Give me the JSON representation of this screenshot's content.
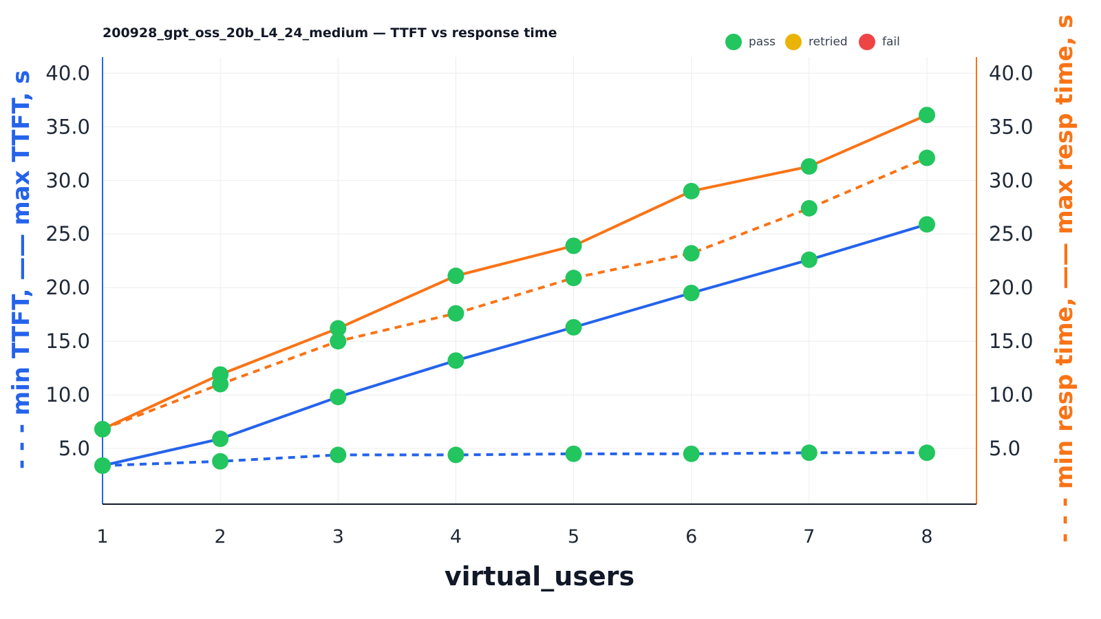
{
  "chart_data": {
    "type": "line",
    "title": "200928_gpt_oss_20b_L4_24_medium — TTFT vs response time",
    "xlabel": "virtual_users",
    "ylabel_left": "- - - min TTFT, —— max TTFT, s",
    "ylabel_right": "- - - min resp time, —— max resp time, s",
    "x": [
      1,
      2,
      3,
      4,
      5,
      6,
      7,
      8
    ],
    "ylim_left": [
      0,
      41.5
    ],
    "ylim_right": [
      0,
      41.5
    ],
    "yticks": [
      "5.0",
      "10.0",
      "15.0",
      "20.0",
      "25.0",
      "30.0",
      "35.0",
      "40.0"
    ],
    "grid": true,
    "legend_position": "top-right",
    "legend": [
      {
        "label": "pass",
        "color": "#22c55e"
      },
      {
        "label": "retried",
        "color": "#eab308"
      },
      {
        "label": "fail",
        "color": "#ef4444"
      }
    ],
    "series": [
      {
        "axis": "left",
        "style": "solid",
        "color": "#2563eb",
        "values": [
          3.4,
          5.9,
          9.8,
          13.2,
          16.3,
          19.5,
          22.6,
          25.9
        ],
        "status": [
          "pass",
          "pass",
          "pass",
          "pass",
          "pass",
          "pass",
          "pass",
          "pass"
        ]
      },
      {
        "axis": "left",
        "style": "dashed",
        "color": "#2563eb",
        "values": [
          3.4,
          3.8,
          4.4,
          4.4,
          4.5,
          4.5,
          4.6,
          4.6
        ],
        "status": [
          "pass",
          "pass",
          "pass",
          "pass",
          "pass",
          "pass",
          "pass",
          "pass"
        ]
      },
      {
        "axis": "right",
        "style": "solid",
        "color": "#f97316",
        "values": [
          6.8,
          11.9,
          16.2,
          21.1,
          23.9,
          29.0,
          31.3,
          36.1
        ],
        "status": [
          "pass",
          "pass",
          "pass",
          "pass",
          "pass",
          "pass",
          "pass",
          "pass"
        ]
      },
      {
        "axis": "right",
        "style": "dashed",
        "color": "#f97316",
        "values": [
          6.8,
          11.0,
          15.0,
          17.6,
          20.9,
          23.2,
          27.4,
          32.1
        ],
        "status": [
          "pass",
          "pass",
          "pass",
          "pass",
          "pass",
          "pass",
          "pass",
          "pass"
        ]
      }
    ]
  }
}
